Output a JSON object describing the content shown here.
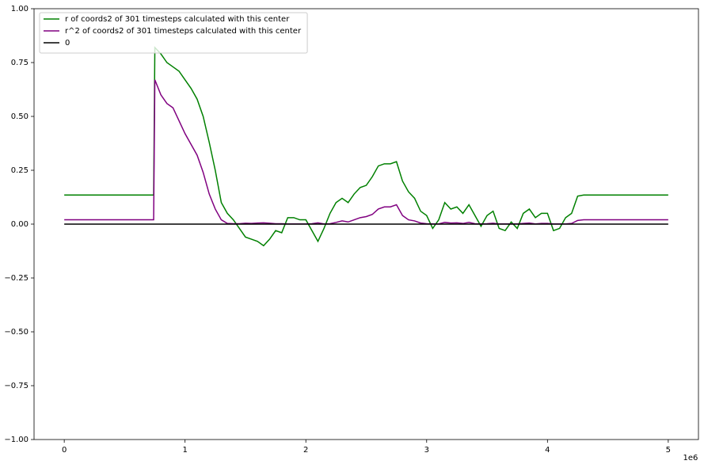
{
  "chart_data": {
    "type": "line",
    "x": [
      0,
      0.74,
      0.75,
      0.8,
      0.85,
      0.9,
      0.95,
      1.0,
      1.05,
      1.1,
      1.15,
      1.2,
      1.25,
      1.3,
      1.35,
      1.4,
      1.45,
      1.5,
      1.55,
      1.6,
      1.65,
      1.7,
      1.75,
      1.8,
      1.85,
      1.9,
      1.95,
      2.0,
      2.05,
      2.1,
      2.15,
      2.2,
      2.25,
      2.3,
      2.35,
      2.4,
      2.45,
      2.5,
      2.55,
      2.6,
      2.65,
      2.7,
      2.75,
      2.8,
      2.85,
      2.9,
      2.95,
      3.0,
      3.05,
      3.1,
      3.15,
      3.2,
      3.25,
      3.3,
      3.35,
      3.4,
      3.45,
      3.5,
      3.55,
      3.6,
      3.65,
      3.7,
      3.75,
      3.8,
      3.85,
      3.9,
      3.95,
      4.0,
      4.05,
      4.1,
      4.15,
      4.2,
      4.25,
      4.3,
      5.0
    ],
    "series": [
      {
        "name": "r of coords2 of 301 timesteps calculated with this center",
        "color": "#008000",
        "values": [
          0.135,
          0.135,
          0.82,
          0.79,
          0.75,
          0.73,
          0.71,
          0.67,
          0.63,
          0.58,
          0.5,
          0.38,
          0.25,
          0.1,
          0.05,
          0.02,
          -0.02,
          -0.06,
          -0.07,
          -0.08,
          -0.1,
          -0.07,
          -0.03,
          -0.04,
          0.03,
          0.03,
          0.02,
          0.02,
          -0.03,
          -0.08,
          -0.02,
          0.05,
          0.1,
          0.12,
          0.1,
          0.14,
          0.17,
          0.18,
          0.22,
          0.27,
          0.28,
          0.28,
          0.29,
          0.2,
          0.15,
          0.12,
          0.06,
          0.04,
          -0.02,
          0.02,
          0.1,
          0.07,
          0.08,
          0.05,
          0.09,
          0.04,
          -0.01,
          0.04,
          0.06,
          -0.02,
          -0.03,
          0.01,
          -0.02,
          0.05,
          0.07,
          0.03,
          0.05,
          0.05,
          -0.03,
          -0.02,
          0.03,
          0.05,
          0.13,
          0.135,
          0.135
        ]
      },
      {
        "name": "r^2 of coords2 of 301 timesteps calculated with this center",
        "color": "#800080",
        "values": [
          0.02,
          0.02,
          0.67,
          0.6,
          0.56,
          0.54,
          0.48,
          0.42,
          0.37,
          0.32,
          0.24,
          0.14,
          0.07,
          0.02,
          0.003,
          0.002,
          0.002,
          0.004,
          0.003,
          0.005,
          0.006,
          0.004,
          0.002,
          0.002,
          0.001,
          0.001,
          0.001,
          0.001,
          0.002,
          0.006,
          0.001,
          0.002,
          0.008,
          0.015,
          0.01,
          0.02,
          0.03,
          0.035,
          0.045,
          0.07,
          0.08,
          0.08,
          0.09,
          0.04,
          0.02,
          0.015,
          0.005,
          0.002,
          0.001,
          0.001,
          0.008,
          0.005,
          0.006,
          0.003,
          0.008,
          0.002,
          0.001,
          0.002,
          0.004,
          0.001,
          0.001,
          0.001,
          0.001,
          0.003,
          0.005,
          0.001,
          0.003,
          0.003,
          0.001,
          0.001,
          0.001,
          0.003,
          0.017,
          0.02,
          0.02
        ]
      },
      {
        "name": "0",
        "color": "#000000",
        "x": [
          0,
          5
        ],
        "values": [
          0,
          0
        ]
      }
    ],
    "x_offset_label": "1e6",
    "xlim": [
      -0.25,
      5.25
    ],
    "xticks": [
      0,
      1,
      2,
      3,
      4,
      5
    ],
    "ylim": [
      -1,
      1
    ],
    "yticks": [
      {
        "value": -1,
        "label": "−1.00"
      },
      {
        "value": -0.75,
        "label": "−0.75"
      },
      {
        "value": -0.5,
        "label": "−0.50"
      },
      {
        "value": -0.25,
        "label": "−0.25"
      },
      {
        "value": 0,
        "label": "0.00"
      },
      {
        "value": 0.25,
        "label": "0.25"
      },
      {
        "value": 0.5,
        "label": "0.50"
      },
      {
        "value": 0.75,
        "label": "0.75"
      },
      {
        "value": 1,
        "label": "1.00"
      }
    ],
    "grid": false,
    "legend": "upper left"
  }
}
